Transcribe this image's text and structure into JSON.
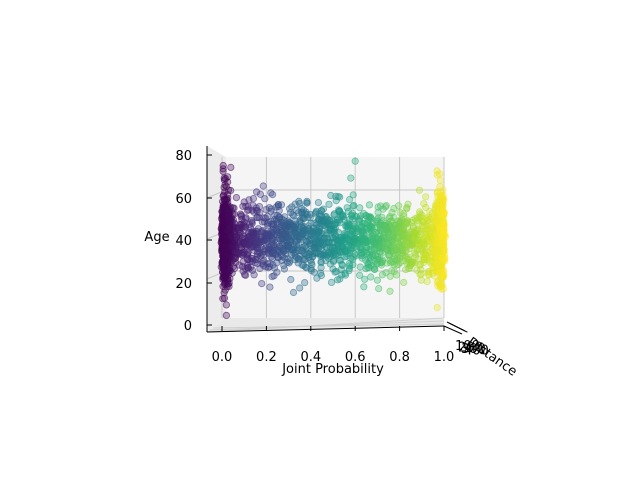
{
  "chart_data": {
    "type": "scatter",
    "projection": "3d",
    "title": "",
    "xlabel": "Joint Probability",
    "ylabel": "Age",
    "zlabel": "Distance",
    "xlim": [
      0.0,
      1.0
    ],
    "ylim": [
      0,
      80
    ],
    "x_ticks": [
      "0.0",
      "0.2",
      "0.4",
      "0.6",
      "0.8",
      "1.0"
    ],
    "y_ticks": [
      "0",
      "20",
      "40",
      "60",
      "80"
    ],
    "z_ticks": [
      "100",
      "200",
      "300",
      "400"
    ],
    "colormap": "viridis",
    "color_by": "Joint Probability",
    "alpha": 0.35,
    "grid": true,
    "pane_color": "#f5f5f5",
    "series": [
      {
        "distribution": "dense band: Age mean about 41, spread about 8, range 5 to 75; heavy clusters at Joint Probability 0.0 and 1.0",
        "x": [
          0.01,
          0.02,
          0.02,
          0.01,
          0.03,
          0.02,
          0.01,
          0.03,
          0.05,
          0.08,
          0.12,
          0.15,
          0.18,
          0.22,
          0.25,
          0.28,
          0.31,
          0.35,
          0.38,
          0.41,
          0.44,
          0.47,
          0.5,
          0.53,
          0.56,
          0.59,
          0.62,
          0.65,
          0.68,
          0.71,
          0.74,
          0.77,
          0.8,
          0.83,
          0.86,
          0.89,
          0.92,
          0.95,
          0.97,
          0.98,
          0.99,
          0.98,
          0.99,
          1.0,
          0.97,
          0.6,
          0.58,
          0.35,
          0.02,
          0.01
        ],
        "y": [
          42,
          66,
          10,
          28,
          52,
          35,
          60,
          45,
          38,
          48,
          55,
          30,
          42,
          63,
          36,
          47,
          22,
          58,
          40,
          33,
          50,
          44,
          27,
          61,
          39,
          46,
          24,
          52,
          41,
          35,
          57,
          43,
          38,
          49,
          30,
          54,
          42,
          46,
          36,
          58,
          40,
          72,
          25,
          45,
          50,
          78,
          70,
          18,
          5,
          70
        ]
      }
    ]
  }
}
